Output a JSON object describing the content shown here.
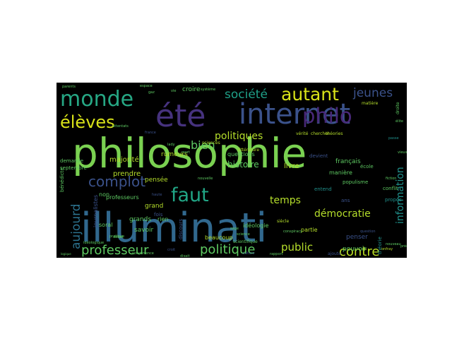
{
  "palette": [
    "#440154",
    "#3b528b",
    "#21908d",
    "#5dc962",
    "#fde725"
  ],
  "words": [
    {
      "text": "philosophie",
      "weight": 100,
      "color": "#7ad151"
    },
    {
      "text": "illuminati",
      "weight": 96,
      "color": "#31688e"
    },
    {
      "text": "internet",
      "weight": 62,
      "color": "#3b528b"
    },
    {
      "text": "été",
      "weight": 60,
      "color": "#46327e"
    },
    {
      "text": "monde",
      "weight": 42,
      "color": "#26a784"
    },
    {
      "text": "philo",
      "weight": 40,
      "color": "#482878"
    },
    {
      "text": "autant",
      "weight": 34,
      "color": "#d8e219"
    },
    {
      "text": "élèves",
      "weight": 34,
      "color": "#d8e219"
    },
    {
      "text": "faut",
      "weight": 34,
      "color": "#21a585"
    },
    {
      "text": "complot",
      "weight": 26,
      "color": "#3b528b"
    },
    {
      "text": "professeur",
      "weight": 24,
      "color": "#5ec962"
    },
    {
      "text": "politique",
      "weight": 24,
      "color": "#5ec962"
    },
    {
      "text": "contre",
      "weight": 22,
      "color": "#bddf26"
    },
    {
      "text": "société",
      "weight": 20,
      "color": "#1fa088"
    },
    {
      "text": "jeunes",
      "weight": 20,
      "color": "#3b528b"
    },
    {
      "text": "aujourd",
      "weight": 20,
      "color": "#2c728e"
    },
    {
      "text": "information",
      "weight": 18,
      "color": "#21918c"
    },
    {
      "text": "politiques",
      "weight": 18,
      "color": "#b5de2b"
    },
    {
      "text": "bien",
      "weight": 18,
      "color": "#5ec962"
    },
    {
      "text": "public",
      "weight": 18,
      "color": "#b5de2b"
    },
    {
      "text": "temps",
      "weight": 16,
      "color": "#b5de2b"
    },
    {
      "text": "démocratie",
      "weight": 14,
      "color": "#b5de2b"
    },
    {
      "text": "histoire",
      "weight": 13,
      "color": "#5ec962"
    },
    {
      "text": "livre",
      "weight": 12,
      "color": "#b5de2b"
    },
    {
      "text": "majorité",
      "weight": 12,
      "color": "#b5de2b"
    },
    {
      "text": "prendre",
      "weight": 11,
      "color": "#b5de2b"
    },
    {
      "text": "français",
      "weight": 11,
      "color": "#5ec962"
    },
    {
      "text": "pensée",
      "weight": 10,
      "color": "#b5de2b"
    },
    {
      "text": "rumeurs",
      "weight": 10,
      "color": "#b5de2b"
    },
    {
      "text": "questions",
      "weight": 10,
      "color": "#5ec962"
    },
    {
      "text": "croire",
      "weight": 10,
      "color": "#5ec962"
    },
    {
      "text": "grand",
      "weight": 10,
      "color": "#b5de2b"
    },
    {
      "text": "beaucoup",
      "weight": 9,
      "color": "#b5de2b"
    },
    {
      "text": "savoir",
      "weight": 9,
      "color": "#5ec962"
    },
    {
      "text": "grands",
      "weight": 9,
      "color": "#5ec962"
    },
    {
      "text": "rien",
      "weight": 9,
      "color": "#5ec962"
    },
    {
      "text": "penser",
      "weight": 9,
      "color": "#3b528b"
    },
    {
      "text": "pouvoir",
      "weight": 9,
      "color": "#5ec962"
    },
    {
      "text": "professeurs",
      "weight": 9,
      "color": "#5ec962"
    },
    {
      "text": "idéologie",
      "weight": 8,
      "color": "#5ec962"
    },
    {
      "text": "théorie",
      "weight": 8,
      "color": "#21918c"
    },
    {
      "text": "manière",
      "weight": 8,
      "color": "#5ec962"
    },
    {
      "text": "partie",
      "weight": 8,
      "color": "#b5de2b"
    },
    {
      "text": "entend",
      "weight": 8,
      "color": "#21918c"
    },
    {
      "text": "conflit",
      "weight": 8,
      "color": "#5ec962"
    },
    {
      "text": "propos",
      "weight": 8,
      "color": "#21918c"
    },
    {
      "text": "école",
      "weight": 8,
      "color": "#5ec962"
    },
    {
      "text": "populisme",
      "weight": 7,
      "color": "#5ec962"
    },
    {
      "text": "devient",
      "weight": 7,
      "color": "#3b528b"
    },
    {
      "text": "ans",
      "weight": 8,
      "color": "#3b528b"
    },
    {
      "text": "fois",
      "weight": 8,
      "color": "#3b528b"
    },
    {
      "text": "soral",
      "weight": 8,
      "color": "#5ec962"
    },
    {
      "text": "non",
      "weight": 8,
      "color": "#5ec962"
    },
    {
      "text": "journalistes",
      "weight": 8,
      "color": "#3b528b"
    },
    {
      "text": "bénédicte",
      "weight": 7,
      "color": "#5ec962"
    },
    {
      "text": "demande",
      "weight": 7,
      "color": "#5ec962"
    },
    {
      "text": "septembre",
      "weight": 7,
      "color": "#5ec962"
    },
    {
      "text": "discours",
      "weight": 7,
      "color": "#3b528b"
    },
    {
      "text": "scientifique",
      "weight": 7,
      "color": "#5ec962"
    },
    {
      "text": "siècle",
      "weight": 7,
      "color": "#b5de2b"
    },
    {
      "text": "littérature",
      "weight": 7,
      "color": "#b5de2b"
    },
    {
      "text": "sciences",
      "weight": 7,
      "color": "#b5de2b"
    },
    {
      "text": "théories",
      "weight": 6,
      "color": "#b5de2b"
    },
    {
      "text": "vérité",
      "weight": 6,
      "color": "#b5de2b"
    },
    {
      "text": "chercher",
      "weight": 6,
      "color": "#b5de2b"
    },
    {
      "text": "matière",
      "weight": 6,
      "color": "#b5de2b"
    },
    {
      "text": "droite",
      "weight": 6,
      "color": "#5ec962"
    },
    {
      "text": "élite",
      "weight": 6,
      "color": "#5ec962"
    },
    {
      "text": "ajoute",
      "weight": 6,
      "color": "#3b528b"
    },
    {
      "text": "onfray",
      "weight": 6,
      "color": "#b5de2b"
    },
    {
      "text": "parents",
      "weight": 6,
      "color": "#5ec962"
    },
    {
      "text": "espace",
      "weight": 6,
      "color": "#5ec962"
    },
    {
      "text": "attentats",
      "weight": 6,
      "color": "#5ec962"
    },
    {
      "text": "idéologique",
      "weight": 6,
      "color": "#5ec962"
    },
    {
      "text": "culture",
      "weight": 6,
      "color": "#3b528b"
    },
    {
      "text": "fiction",
      "weight": 6,
      "color": "#5ec962"
    },
    {
      "text": "conspiracy",
      "weight": 6,
      "color": "#5ec962"
    },
    {
      "text": "vie",
      "weight": 6,
      "color": "#5ec962"
    },
    {
      "text": "système",
      "weight": 6,
      "color": "#5ec962"
    },
    {
      "text": "mort",
      "weight": 6,
      "color": "#5ec962"
    },
    {
      "text": "france",
      "weight": 6,
      "color": "#3b528b"
    },
    {
      "text": "haute",
      "weight": 6,
      "color": "#3b528b"
    },
    {
      "text": "croit",
      "weight": 6,
      "color": "#3b528b"
    },
    {
      "text": "débat",
      "weight": 6,
      "color": "#5ec962"
    },
    {
      "text": "concurrence",
      "weight": 5,
      "color": "#5ec962"
    },
    {
      "text": "pratique",
      "weight": 5,
      "color": "#5ec962"
    },
    {
      "text": "disait",
      "weight": 5,
      "color": "#5ec962"
    },
    {
      "text": "sage",
      "weight": 5,
      "color": "#5ec962"
    },
    {
      "text": "science",
      "weight": 5,
      "color": "#5ec962"
    },
    {
      "text": "lady",
      "weight": 5,
      "color": "#5ec962"
    },
    {
      "text": "gaz",
      "weight": 5,
      "color": "#5ec962"
    },
    {
      "text": "nouvelle",
      "weight": 5,
      "color": "#5ec962"
    },
    {
      "text": "passe",
      "weight": 5,
      "color": "#21918c"
    },
    {
      "text": "question",
      "weight": 5,
      "color": "#3b528b"
    },
    {
      "text": "rapport",
      "weight": 5,
      "color": "#5ec962"
    },
    {
      "text": "nouveau",
      "weight": 5,
      "color": "#5ec962"
    },
    {
      "text": "précise",
      "weight": 5,
      "color": "#5ec962"
    },
    {
      "text": "logique",
      "weight": 5,
      "color": "#5ec962"
    },
    {
      "text": "vieux",
      "weight": 5,
      "color": "#5ec962"
    }
  ]
}
